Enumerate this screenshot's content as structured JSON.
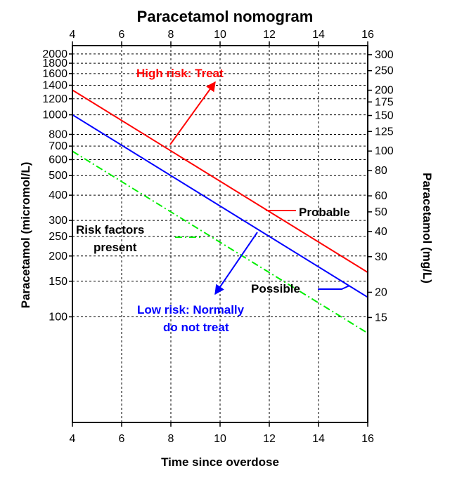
{
  "chart_data": {
    "type": "line",
    "title": "Paracetamol nomogram",
    "xlabel": "Time since overdose",
    "ylabel_left": "Paracetamol (micromol/L)",
    "ylabel_right": "Paracetamol (mg/L)",
    "x_scale": "linear",
    "y_scale": "log",
    "xlim": [
      4,
      16
    ],
    "ylim_left": [
      30,
      2200
    ],
    "x_ticks": [
      4,
      6,
      8,
      10,
      12,
      14,
      16
    ],
    "x_tick_labels": [
      "4",
      "6",
      "8",
      "10",
      "12",
      "14",
      "16"
    ],
    "y_ticks_left": [
      100,
      150,
      200,
      250,
      300,
      400,
      500,
      600,
      700,
      800,
      1000,
      1200,
      1400,
      1600,
      1800,
      2000
    ],
    "y_tick_labels_left": [
      "100",
      "150",
      "200",
      "250",
      "300",
      "400",
      "500",
      "600",
      "700",
      "800",
      "1000",
      "1200",
      "1400",
      "1600",
      "1800",
      "2000"
    ],
    "y_ticks_right_mgL": [
      15,
      20,
      30,
      40,
      50,
      60,
      80,
      100,
      125,
      150,
      175,
      200,
      250,
      300
    ],
    "y_tick_labels_right": [
      "15",
      "20",
      "30",
      "40",
      "50",
      "60",
      "80",
      "100",
      "125",
      "150",
      "175",
      "200",
      "250",
      "300"
    ],
    "grid": true,
    "series": [
      {
        "name": "Probable",
        "color": "#ff0000",
        "style": "solid",
        "x": [
          4,
          16
        ],
        "y": [
          1325,
          166
        ]
      },
      {
        "name": "Possible",
        "color": "#0000ff",
        "style": "solid",
        "x": [
          4,
          16
        ],
        "y": [
          1000,
          125
        ]
      },
      {
        "name": "Risk factors present",
        "color": "#00ee00",
        "style": "dash-dot",
        "x": [
          4,
          16
        ],
        "y": [
          660,
          83
        ]
      }
    ],
    "annotations": {
      "high_risk": {
        "text": "High risk: Treat",
        "color": "#ff0000"
      },
      "low_risk_line1": {
        "text": "Low risk: Normally",
        "color": "#0000ff"
      },
      "low_risk_line2": {
        "text": "do not treat",
        "color": "#0000ff"
      },
      "probable": {
        "text": "Probable",
        "color": "#000000"
      },
      "possible": {
        "text": "Possible",
        "color": "#000000"
      },
      "risk_factors_line1": {
        "text": "Risk factors",
        "color": "#000000"
      },
      "risk_factors_line2": {
        "text": "present",
        "color": "#000000"
      }
    }
  }
}
